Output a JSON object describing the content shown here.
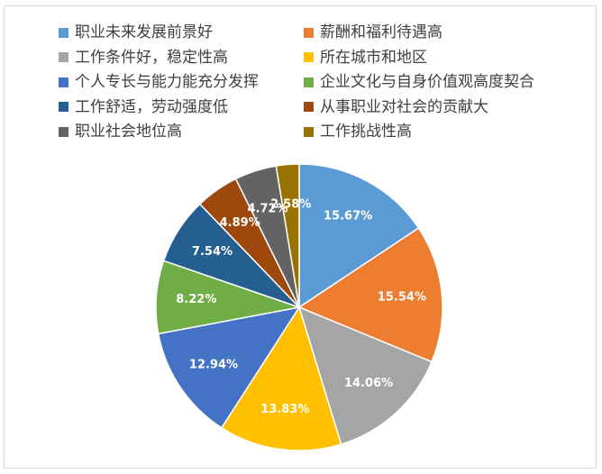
{
  "chart_data": {
    "type": "pie",
    "title": "",
    "legend_position": "top",
    "categories": [
      "职业未来发展前景好",
      "薪酬和福利待遇高",
      "工作条件好，稳定性高",
      "所在城市和地区",
      "个人专长与能力能充分发挥",
      "企业文化与自身价值观高度契合",
      "工作舒适，劳动强度低",
      "从事职业对社会的贡献大",
      "职业社会地位高",
      "工作挑战性高"
    ],
    "values": [
      15.67,
      15.54,
      14.06,
      13.83,
      12.94,
      8.22,
      7.54,
      4.89,
      4.72,
      2.58
    ],
    "data_labels": [
      "15.67%",
      "15.54%",
      "14.06%",
      "13.83%",
      "12.94%",
      "8.22%",
      "7.54%",
      "4.89%",
      "4.72%",
      "2.58%"
    ],
    "colors": [
      "#5b9bd5",
      "#ed7d31",
      "#a5a5a5",
      "#ffc000",
      "#4472c4",
      "#70ad47",
      "#255e91",
      "#9e480e",
      "#636363",
      "#997300"
    ],
    "slice_border_color": "#ffffff"
  }
}
